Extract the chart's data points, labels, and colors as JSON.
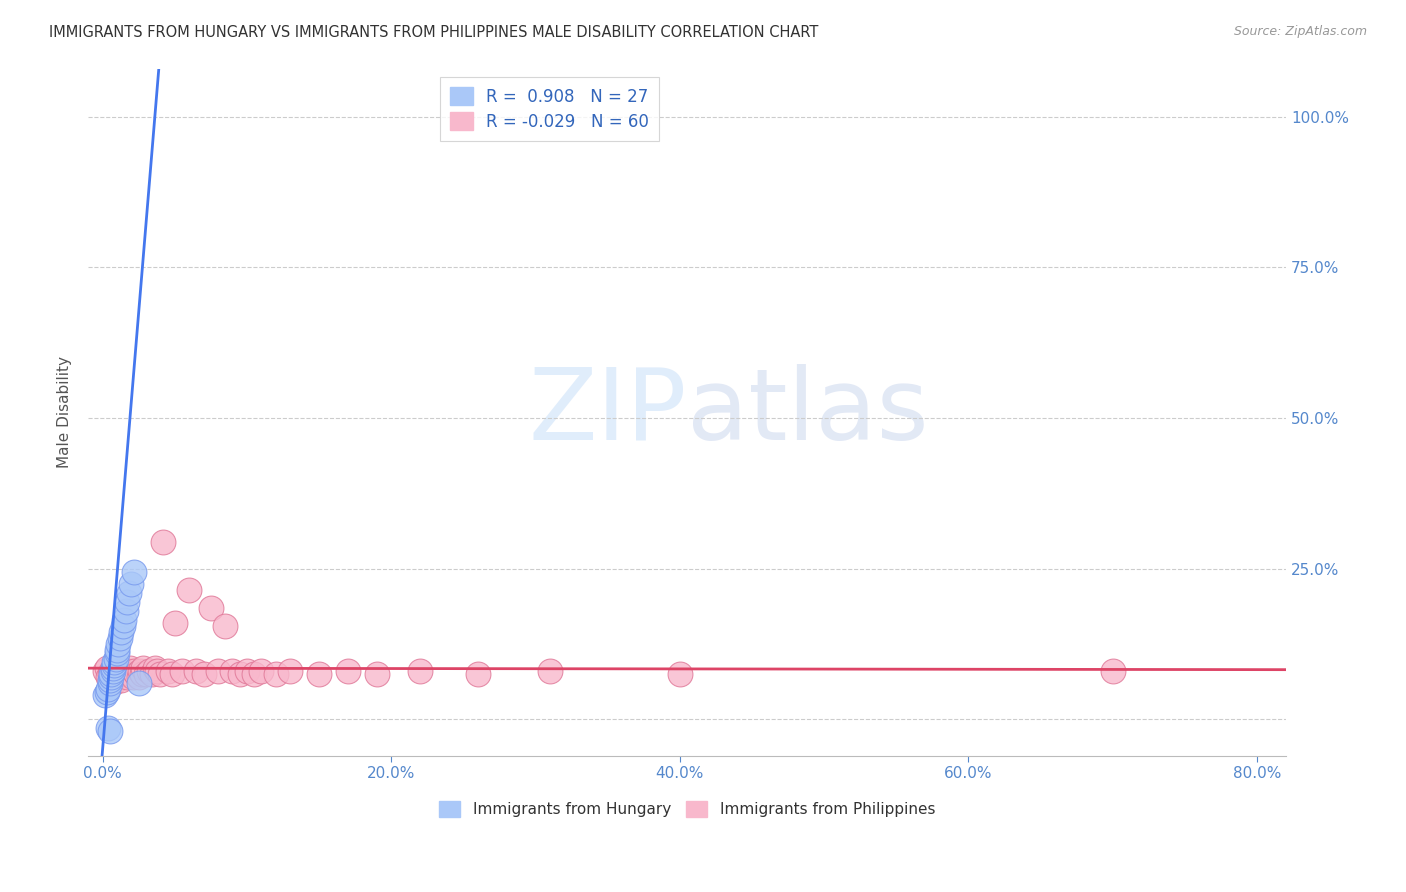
{
  "title": "IMMIGRANTS FROM HUNGARY VS IMMIGRANTS FROM PHILIPPINES MALE DISABILITY CORRELATION CHART",
  "source": "Source: ZipAtlas.com",
  "ylabel": "Male Disability",
  "yticks": [
    0.0,
    0.25,
    0.5,
    0.75,
    1.0
  ],
  "ytick_labels": [
    "",
    "25.0%",
    "50.0%",
    "75.0%",
    "100.0%"
  ],
  "xticks": [
    0.0,
    0.2,
    0.4,
    0.6,
    0.8
  ],
  "xtick_labels": [
    "0.0%",
    "20.0%",
    "40.0%",
    "60.0%",
    "80.0%"
  ],
  "xrange": [
    -0.01,
    0.82
  ],
  "yrange": [
    -0.06,
    1.08
  ],
  "hungary_color": "#aac8f8",
  "hungary_edge_color": "#7799ee",
  "philippines_color": "#f8b8cc",
  "philippines_edge_color": "#e07898",
  "hungary_line_color": "#4477ee",
  "philippines_line_color": "#dd4466",
  "legend_hungary_R": "0.908",
  "legend_hungary_N": "27",
  "legend_philippines_R": "-0.029",
  "legend_philippines_N": "60",
  "hungary_x": [
    0.002,
    0.003,
    0.004,
    0.005,
    0.005,
    0.006,
    0.006,
    0.007,
    0.007,
    0.008,
    0.008,
    0.009,
    0.01,
    0.01,
    0.011,
    0.012,
    0.013,
    0.014,
    0.015,
    0.016,
    0.017,
    0.018,
    0.02,
    0.022,
    0.004,
    0.005,
    0.025
  ],
  "hungary_y": [
    0.04,
    0.045,
    0.05,
    0.06,
    0.065,
    0.07,
    0.075,
    0.08,
    0.085,
    0.09,
    0.095,
    0.1,
    0.11,
    0.115,
    0.125,
    0.135,
    0.145,
    0.155,
    0.165,
    0.18,
    0.195,
    0.21,
    0.225,
    0.245,
    -0.015,
    -0.02,
    0.06
  ],
  "philippines_x": [
    0.002,
    0.003,
    0.004,
    0.005,
    0.005,
    0.006,
    0.007,
    0.007,
    0.008,
    0.009,
    0.01,
    0.011,
    0.012,
    0.013,
    0.014,
    0.015,
    0.016,
    0.017,
    0.018,
    0.019,
    0.02,
    0.021,
    0.022,
    0.023,
    0.025,
    0.026,
    0.027,
    0.028,
    0.03,
    0.032,
    0.034,
    0.036,
    0.038,
    0.04,
    0.042,
    0.045,
    0.048,
    0.05,
    0.055,
    0.06,
    0.065,
    0.07,
    0.075,
    0.08,
    0.085,
    0.09,
    0.095,
    0.1,
    0.105,
    0.11,
    0.12,
    0.13,
    0.15,
    0.17,
    0.19,
    0.22,
    0.26,
    0.31,
    0.4,
    0.7
  ],
  "philippines_y": [
    0.08,
    0.085,
    0.07,
    0.065,
    0.075,
    0.08,
    0.06,
    0.075,
    0.07,
    0.065,
    0.075,
    0.08,
    0.07,
    0.065,
    0.075,
    0.08,
    0.075,
    0.07,
    0.08,
    0.085,
    0.075,
    0.07,
    0.08,
    0.075,
    0.07,
    0.08,
    0.075,
    0.085,
    0.075,
    0.08,
    0.075,
    0.085,
    0.08,
    0.075,
    0.295,
    0.08,
    0.075,
    0.16,
    0.08,
    0.215,
    0.08,
    0.075,
    0.185,
    0.08,
    0.155,
    0.08,
    0.075,
    0.08,
    0.075,
    0.08,
    0.075,
    0.08,
    0.075,
    0.08,
    0.075,
    0.08,
    0.075,
    0.08,
    0.075,
    0.08
  ],
  "watermark_zip": "ZIP",
  "watermark_atlas": "atlas",
  "background_color": "#ffffff",
  "grid_color": "#cccccc",
  "tick_color": "#5588cc",
  "title_color": "#333333",
  "source_color": "#999999"
}
